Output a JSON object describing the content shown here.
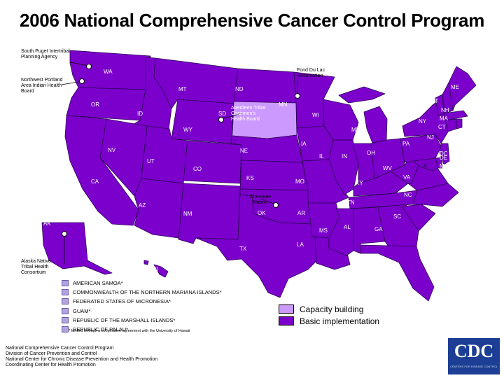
{
  "title": "2006 National Comprehensive Cancer Control Program",
  "colors": {
    "basic": "#7b00cc",
    "capacity": "#cc99ff",
    "territory": "#b2a3df",
    "border": "#2a0055",
    "logo": "#1c3f95"
  },
  "states": [
    {
      "code": "WA",
      "status": "basic"
    },
    {
      "code": "OR",
      "status": "basic"
    },
    {
      "code": "CA",
      "status": "basic"
    },
    {
      "code": "ID",
      "status": "basic"
    },
    {
      "code": "NV",
      "status": "basic"
    },
    {
      "code": "MT",
      "status": "basic"
    },
    {
      "code": "WY",
      "status": "basic"
    },
    {
      "code": "UT",
      "status": "basic"
    },
    {
      "code": "AZ",
      "status": "basic"
    },
    {
      "code": "CO",
      "status": "basic"
    },
    {
      "code": "NM",
      "status": "basic"
    },
    {
      "code": "ND",
      "status": "basic"
    },
    {
      "code": "SD",
      "status": "capacity"
    },
    {
      "code": "NE",
      "status": "basic"
    },
    {
      "code": "KS",
      "status": "basic"
    },
    {
      "code": "OK",
      "status": "basic"
    },
    {
      "code": "TX",
      "status": "basic"
    },
    {
      "code": "MN",
      "status": "basic"
    },
    {
      "code": "IA",
      "status": "basic"
    },
    {
      "code": "MO",
      "status": "basic"
    },
    {
      "code": "AR",
      "status": "basic"
    },
    {
      "code": "LA",
      "status": "basic"
    },
    {
      "code": "WI",
      "status": "basic"
    },
    {
      "code": "IL",
      "status": "basic"
    },
    {
      "code": "MS",
      "status": "basic"
    },
    {
      "code": "MI",
      "status": "basic"
    },
    {
      "code": "IN",
      "status": "basic"
    },
    {
      "code": "KY",
      "status": "basic"
    },
    {
      "code": "TN",
      "status": "basic"
    },
    {
      "code": "AL",
      "status": "basic"
    },
    {
      "code": "OH",
      "status": "basic"
    },
    {
      "code": "WV",
      "status": "basic"
    },
    {
      "code": "GA",
      "status": "basic"
    },
    {
      "code": "FL",
      "status": "basic"
    },
    {
      "code": "SC",
      "status": "basic"
    },
    {
      "code": "NC",
      "status": "basic"
    },
    {
      "code": "VA",
      "status": "basic"
    },
    {
      "code": "PA",
      "status": "basic"
    },
    {
      "code": "NY",
      "status": "basic"
    },
    {
      "code": "VT",
      "status": "basic"
    },
    {
      "code": "NH",
      "status": "basic"
    },
    {
      "code": "ME",
      "status": "basic"
    },
    {
      "code": "MA",
      "status": "basic"
    },
    {
      "code": "CT",
      "status": "basic"
    },
    {
      "code": "RI",
      "status": "basic"
    },
    {
      "code": "NJ",
      "status": "basic"
    },
    {
      "code": "DE",
      "status": "basic"
    },
    {
      "code": "MD",
      "status": "basic"
    },
    {
      "code": "DC",
      "status": "basic"
    },
    {
      "code": "AK",
      "status": "basic"
    },
    {
      "code": "HI",
      "status": "basic"
    }
  ],
  "tribal_callouts": [
    "South Puget Intertribal Planning Agency",
    "Northwest Portland Area Indian Health Board",
    "Fond Du Lac Reservation",
    "Aberdeen Tribal Chairmen's Health Board",
    "Cherokee Nation",
    "Alaska Native Tribal Health Consortium"
  ],
  "territories": [
    "AMERICAN SAMOA*",
    "COMMONWEALTH OF THE NORTHERN MARIANA ISLANDS*",
    "FEDERATED STATES OF MICRONESIA*",
    "GUAM*",
    "REPUBLIC OF THE MARSHALL ISLANDS*",
    "REPUBLIC OF PALAU*"
  ],
  "footnote": "* funded through a cooperative agreement with the University of Hawaii",
  "legend": [
    {
      "label": "Capacity building",
      "status": "capacity"
    },
    {
      "label": "Basic implementation",
      "status": "basic"
    }
  ],
  "credits": [
    "National Comprehensive Cancer Control Program",
    "Division of Cancer Prevention and Control",
    "National Center for Chronic Disease Prevention and Health Promotion",
    "Coordinating Center for Health Promotion"
  ],
  "logo": {
    "text": "CDC",
    "icon": "cdc-logo"
  }
}
